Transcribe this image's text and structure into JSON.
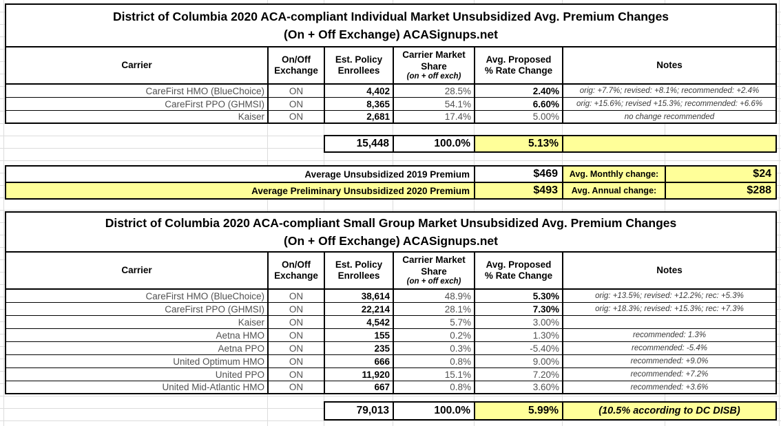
{
  "colors": {
    "highlight": "#FFFF99",
    "grid": "#DCDCDC"
  },
  "column_headers": {
    "carrier": "Carrier",
    "exchange1": "On/Off",
    "exchange2": "Exchange",
    "enrollees1": "Est. Policy",
    "enrollees2": "Enrollees",
    "share1": "Carrier Market",
    "share2": "Share",
    "share_sub": "(on + off exch)",
    "rate1": "Avg. Proposed",
    "rate2": "% Rate Change",
    "notes": "Notes"
  },
  "tables": [
    {
      "title1": "District of Columbia 2020 ACA-compliant Individual Market Unsubsidized Avg. Premium Changes",
      "title2": "(On + Off Exchange) ACASignups.net",
      "rows": [
        {
          "carrier": "CareFirst HMO (BlueChoice)",
          "exchange": "ON",
          "enrollees": "4,402",
          "share": "28.5%",
          "rate": "2.40%",
          "rate_bold": true,
          "notes": "orig: +7.7%; revised: +8.1%; recommended: +2.4%"
        },
        {
          "carrier": "CareFirst PPO (GHMSI)",
          "exchange": "ON",
          "enrollees": "8,365",
          "share": "54.1%",
          "rate": "6.60%",
          "rate_bold": true,
          "notes": "orig: +15.6%; revised +15.3%; recommended: +6.6%"
        },
        {
          "carrier": "Kaiser",
          "exchange": "ON",
          "enrollees": "2,681",
          "share": "17.4%",
          "rate": "5.00%",
          "rate_bold": false,
          "notes": "no change recommended"
        }
      ],
      "totals": {
        "enrollees": "15,448",
        "share": "100.0%",
        "rate": "5.13%",
        "notes": ""
      }
    },
    {
      "title1": "District of Columbia 2020 ACA-compliant Small Group Market Unsubsidized Avg. Premium Changes",
      "title2": "(On + Off Exchange) ACASignups.net",
      "rows": [
        {
          "carrier": "CareFirst HMO (BlueChoice)",
          "exchange": "ON",
          "enrollees": "38,614",
          "share": "48.9%",
          "rate": "5.30%",
          "rate_bold": true,
          "notes": "orig: +13.5%; revised: +12.2%; rec: +5.3%"
        },
        {
          "carrier": "CareFirst PPO (GHMSI)",
          "exchange": "ON",
          "enrollees": "22,214",
          "share": "28.1%",
          "rate": "7.30%",
          "rate_bold": true,
          "notes": "orig: +18.3%; revised: +15.3%; rec: +7.3%"
        },
        {
          "carrier": "Kaiser",
          "exchange": "ON",
          "enrollees": "4,542",
          "share": "5.7%",
          "rate": "3.00%",
          "rate_bold": false,
          "notes": ""
        },
        {
          "carrier": "Aetna HMO",
          "exchange": "ON",
          "enrollees": "155",
          "share": "0.2%",
          "rate": "1.30%",
          "rate_bold": false,
          "notes": "recommended: 1.3%"
        },
        {
          "carrier": "Aetna PPO",
          "exchange": "ON",
          "enrollees": "235",
          "share": "0.3%",
          "rate": "-5.40%",
          "rate_bold": false,
          "notes": "recommended: -5.4%"
        },
        {
          "carrier": "United Optimum HMO",
          "exchange": "ON",
          "enrollees": "666",
          "share": "0.8%",
          "rate": "9.00%",
          "rate_bold": false,
          "notes": "recommended: +9.0%"
        },
        {
          "carrier": "United PPO",
          "exchange": "ON",
          "enrollees": "11,920",
          "share": "15.1%",
          "rate": "7.20%",
          "rate_bold": false,
          "notes": "recommended: +7.2%"
        },
        {
          "carrier": "United Mid-Atlantic HMO",
          "exchange": "ON",
          "enrollees": "667",
          "share": "0.8%",
          "rate": "3.60%",
          "rate_bold": false,
          "notes": "recommended: +3.6%"
        }
      ],
      "totals": {
        "enrollees": "79,013",
        "share": "100.0%",
        "rate": "5.99%",
        "notes": "(10.5% according to DC DISB)"
      }
    }
  ],
  "summary": {
    "rows": [
      {
        "label": "Average Unsubsidized 2019 Premium",
        "value": "$469",
        "change_label": "Avg. Monthly change:",
        "change_value": "$24",
        "label_highlight": false
      },
      {
        "label": "Average Preliminary Unsubsidized 2020 Premium",
        "value": "$493",
        "change_label": "Avg. Annual change:",
        "change_value": "$288",
        "label_highlight": true
      }
    ]
  }
}
